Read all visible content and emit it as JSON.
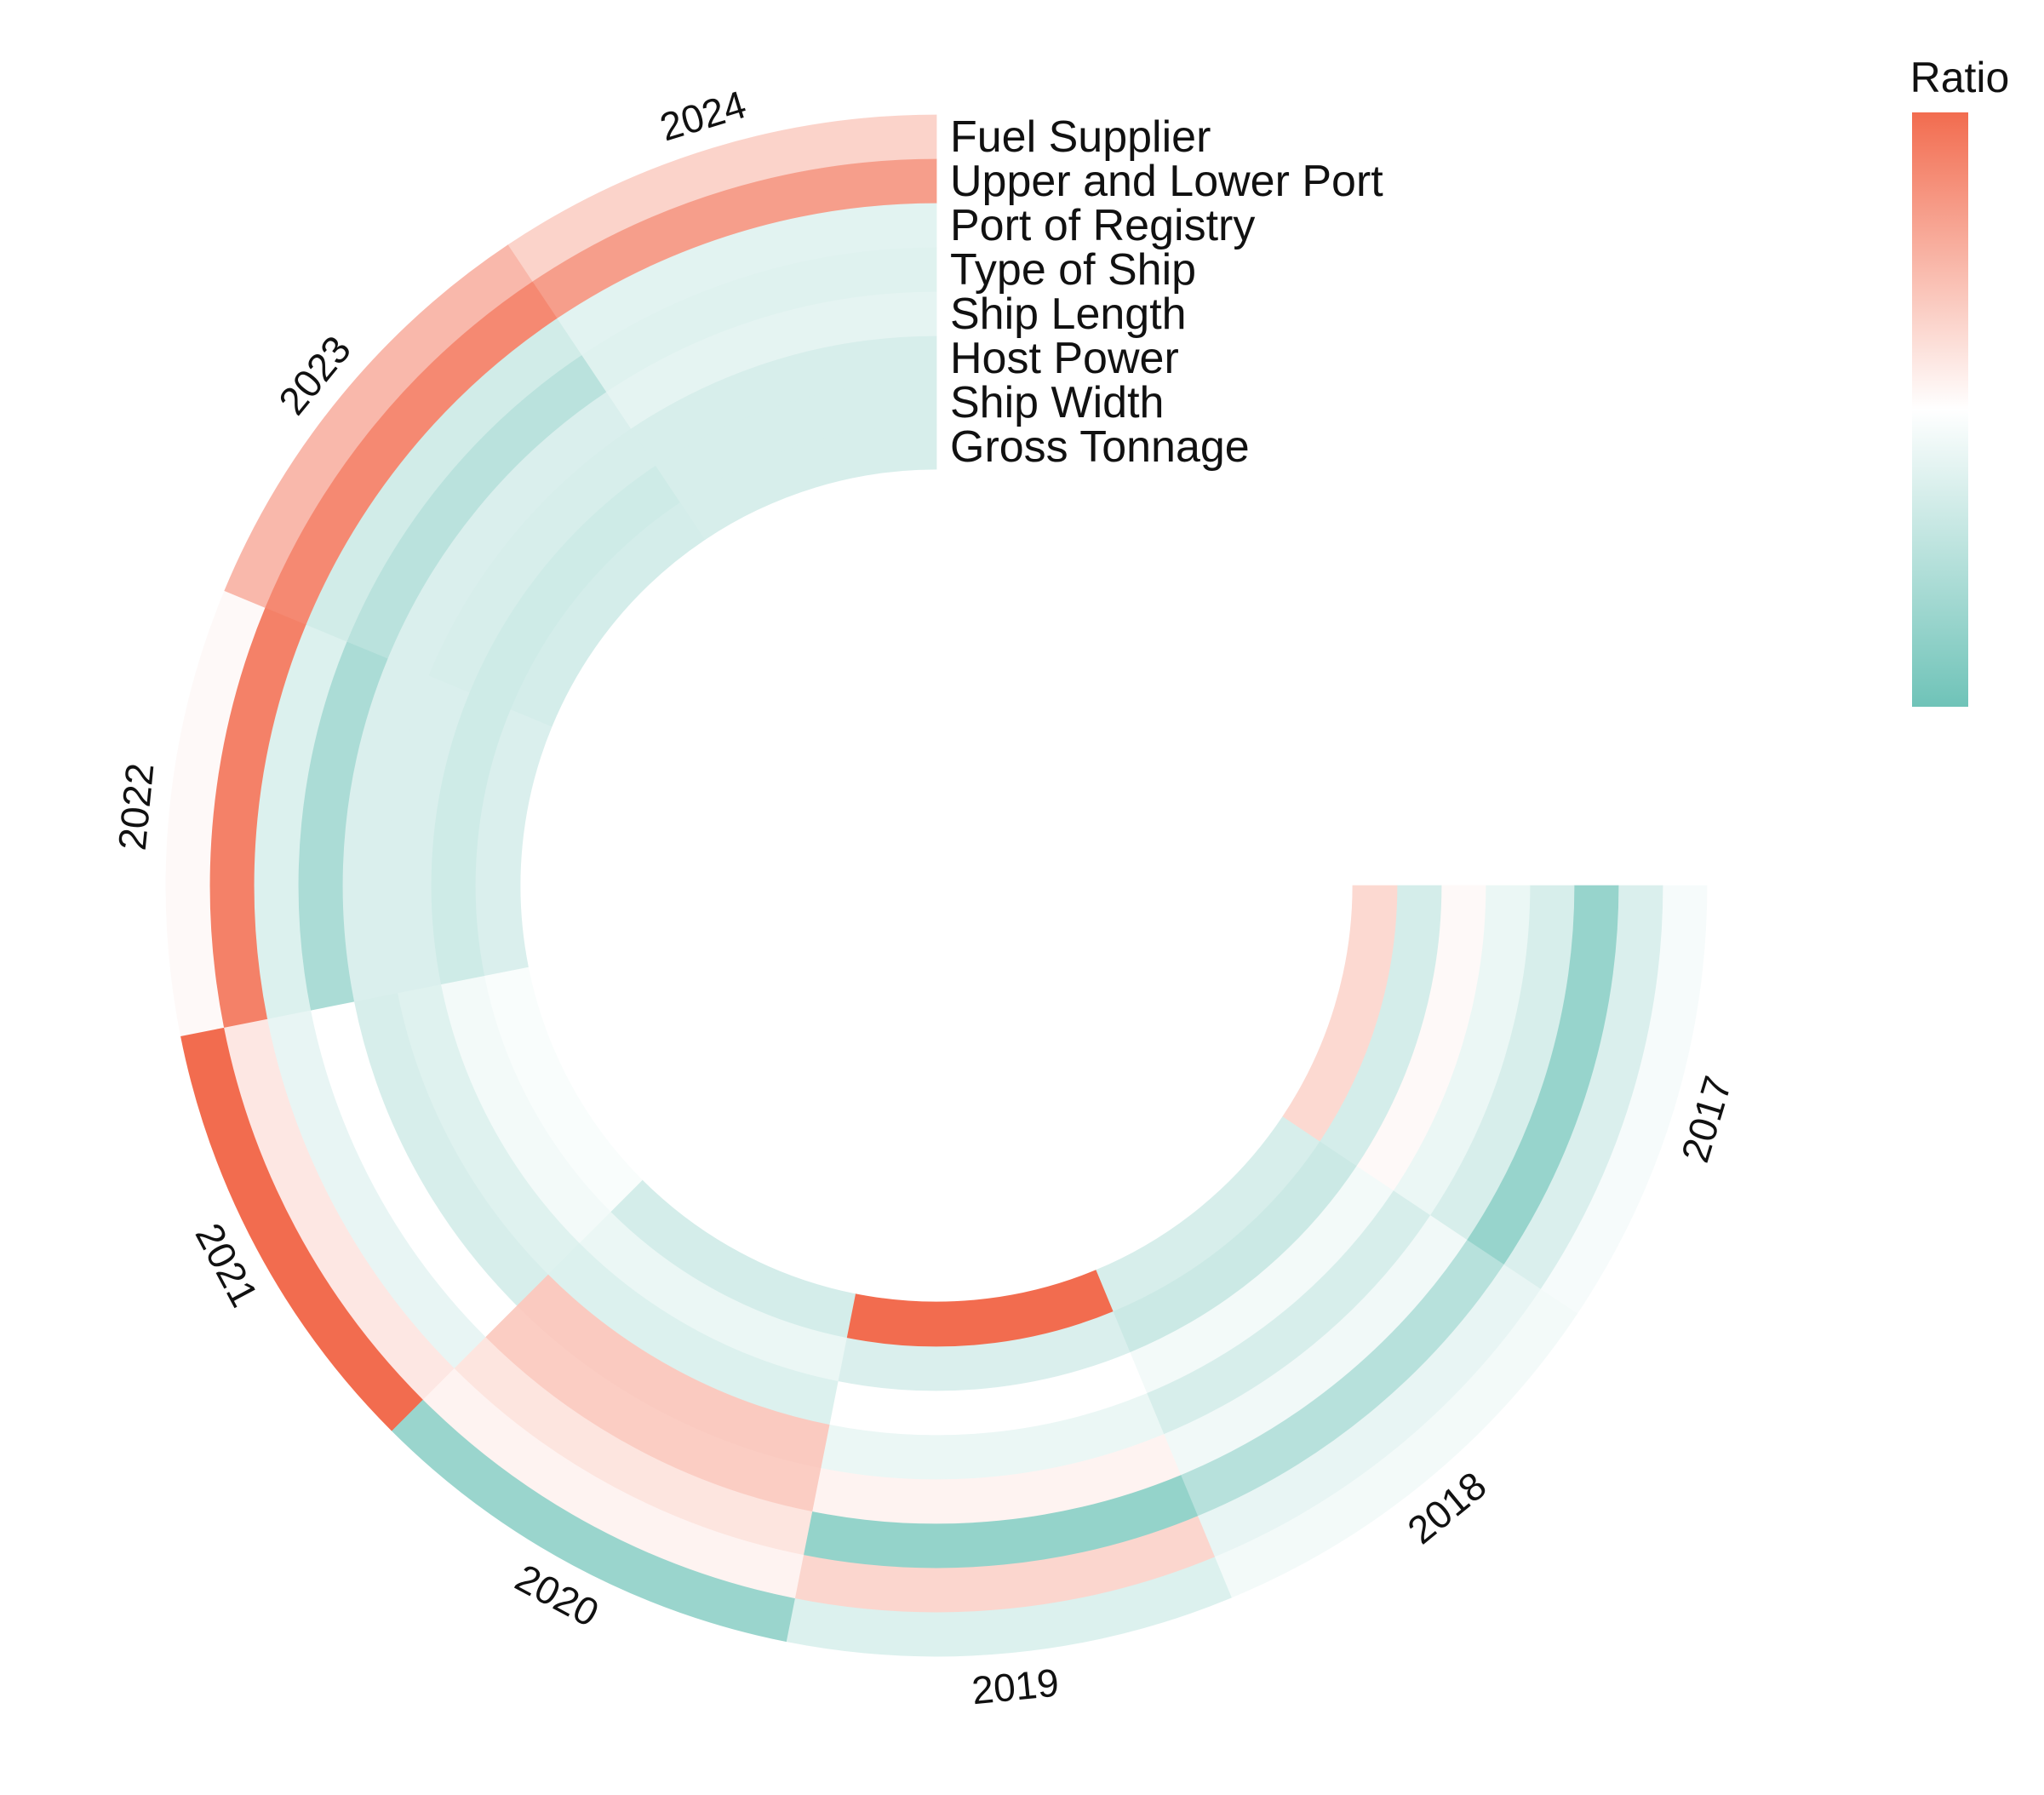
{
  "chart_data": {
    "type": "heatmap",
    "layout": "circular",
    "legend_title": "Ratio",
    "legend_placement": "top-right",
    "color_low": "#6fc3b8",
    "color_mid": "#ffffff",
    "color_high": "#f26c4f",
    "value_range": [
      0,
      1
    ],
    "years": [
      "2017",
      "2018",
      "2019",
      "2020",
      "2021",
      "2022",
      "2023",
      "2024"
    ],
    "tracks": [
      "Fuel Supplier",
      "Upper and Lower Port",
      "Port of Registry",
      "Type of Ship",
      "Ship Length",
      "Host Power",
      "Ship Width",
      "Gross Tonnage"
    ],
    "values": [
      [
        0.47,
        0.37,
        0.14,
        0.36,
        0.43,
        0.52,
        0.35,
        0.63
      ],
      [
        0.46,
        0.42,
        0.25,
        0.45,
        0.36,
        0.46,
        0.32,
        0.36
      ],
      [
        0.38,
        0.64,
        0.13,
        0.54,
        0.43,
        0.5,
        0.37,
        1.0
      ],
      [
        0.15,
        0.54,
        0.59,
        0.67,
        0.68,
        0.38,
        0.43,
        0.35
      ],
      [
        1.0,
        0.58,
        0.42,
        0.5,
        0.36,
        0.39,
        0.46,
        0.48
      ],
      [
        0.52,
        0.93,
        0.38,
        0.21,
        0.37,
        0.37,
        0.33,
        0.37
      ],
      [
        0.74,
        0.9,
        0.34,
        0.26,
        0.37,
        0.36,
        0.33,
        0.35
      ],
      [
        0.65,
        0.83,
        0.4,
        0.39,
        0.41,
        0.36,
        0.36,
        0.36
      ]
    ]
  }
}
